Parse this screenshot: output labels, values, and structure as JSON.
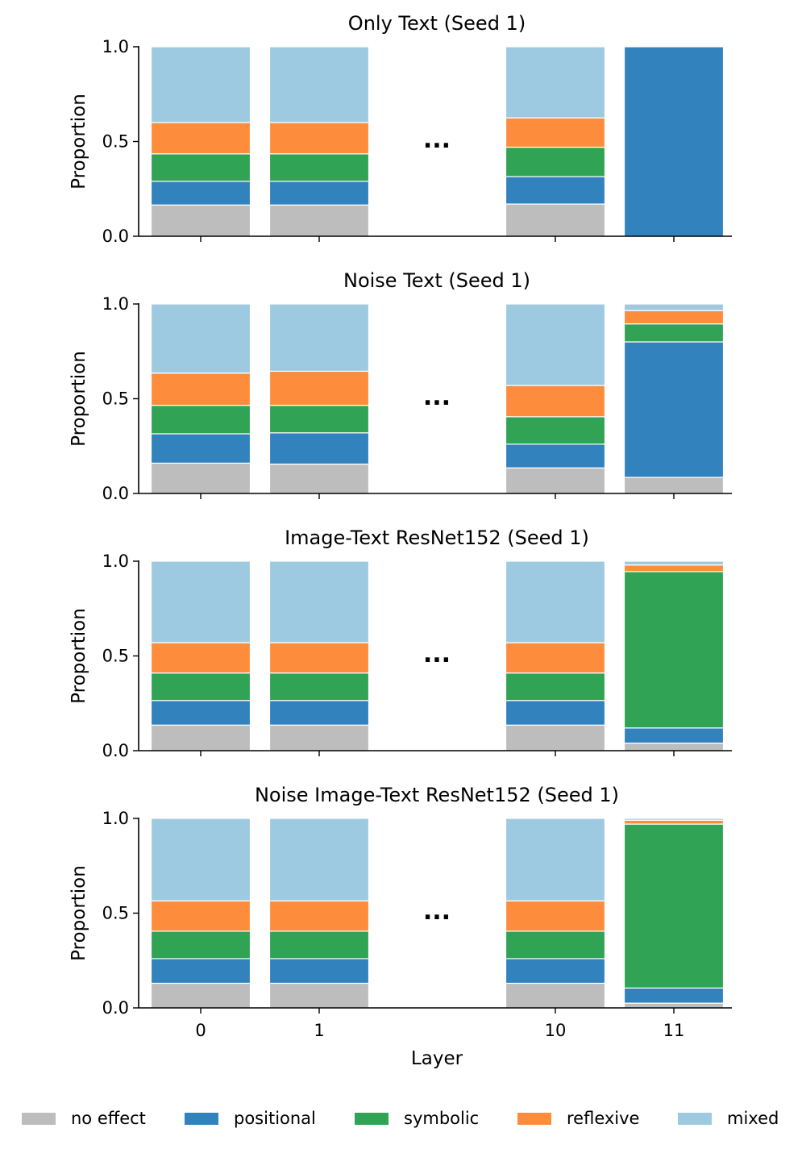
{
  "chart_data": {
    "type": "bar",
    "stacked": true,
    "shared": {
      "categories": [
        "0",
        "1",
        "10",
        "11"
      ],
      "gap_marker": "...",
      "xlabel": "Layer",
      "ylabel": "Proportion",
      "ylim": [
        0,
        1
      ],
      "yticks": [
        "0.0",
        "0.5",
        "1.0"
      ],
      "grid": false
    },
    "legend": {
      "placement": "bottom",
      "entries": [
        {
          "name": "no effect",
          "color": "#bdbdbd"
        },
        {
          "name": "positional",
          "color": "#3182bd"
        },
        {
          "name": "symbolic",
          "color": "#31a354"
        },
        {
          "name": "reflexive",
          "color": "#fd8d3c"
        },
        {
          "name": "mixed",
          "color": "#9ecae1"
        }
      ]
    },
    "panels": [
      {
        "title": "Only Text (Seed 1)",
        "series": [
          {
            "name": "no effect",
            "values": [
              0.165,
              0.165,
              0.17,
              0.0
            ]
          },
          {
            "name": "positional",
            "values": [
              0.125,
              0.125,
              0.145,
              1.0
            ]
          },
          {
            "name": "symbolic",
            "values": [
              0.145,
              0.145,
              0.155,
              0.0
            ]
          },
          {
            "name": "reflexive",
            "values": [
              0.165,
              0.165,
              0.155,
              0.0
            ]
          },
          {
            "name": "mixed",
            "values": [
              0.4,
              0.4,
              0.375,
              0.0
            ]
          }
        ]
      },
      {
        "title": "Noise Text (Seed 1)",
        "series": [
          {
            "name": "no effect",
            "values": [
              0.16,
              0.155,
              0.135,
              0.085
            ]
          },
          {
            "name": "positional",
            "values": [
              0.155,
              0.165,
              0.125,
              0.715
            ]
          },
          {
            "name": "symbolic",
            "values": [
              0.15,
              0.145,
              0.145,
              0.095
            ]
          },
          {
            "name": "reflexive",
            "values": [
              0.17,
              0.18,
              0.165,
              0.07
            ]
          },
          {
            "name": "mixed",
            "values": [
              0.365,
              0.355,
              0.43,
              0.035
            ]
          }
        ]
      },
      {
        "title": "Image-Text ResNet152 (Seed 1)",
        "series": [
          {
            "name": "no effect",
            "values": [
              0.135,
              0.135,
              0.135,
              0.04
            ]
          },
          {
            "name": "positional",
            "values": [
              0.13,
              0.13,
              0.13,
              0.08
            ]
          },
          {
            "name": "symbolic",
            "values": [
              0.145,
              0.145,
              0.145,
              0.825
            ]
          },
          {
            "name": "reflexive",
            "values": [
              0.16,
              0.16,
              0.16,
              0.035
            ]
          },
          {
            "name": "mixed",
            "values": [
              0.43,
              0.43,
              0.43,
              0.02
            ]
          }
        ]
      },
      {
        "title": "Noise Image-Text ResNet152 (Seed 1)",
        "series": [
          {
            "name": "no effect",
            "values": [
              0.13,
              0.13,
              0.13,
              0.025
            ]
          },
          {
            "name": "positional",
            "values": [
              0.13,
              0.13,
              0.13,
              0.08
            ]
          },
          {
            "name": "symbolic",
            "values": [
              0.145,
              0.145,
              0.145,
              0.865
            ]
          },
          {
            "name": "reflexive",
            "values": [
              0.16,
              0.16,
              0.16,
              0.02
            ]
          },
          {
            "name": "mixed",
            "values": [
              0.435,
              0.435,
              0.435,
              0.01
            ]
          }
        ]
      }
    ]
  }
}
